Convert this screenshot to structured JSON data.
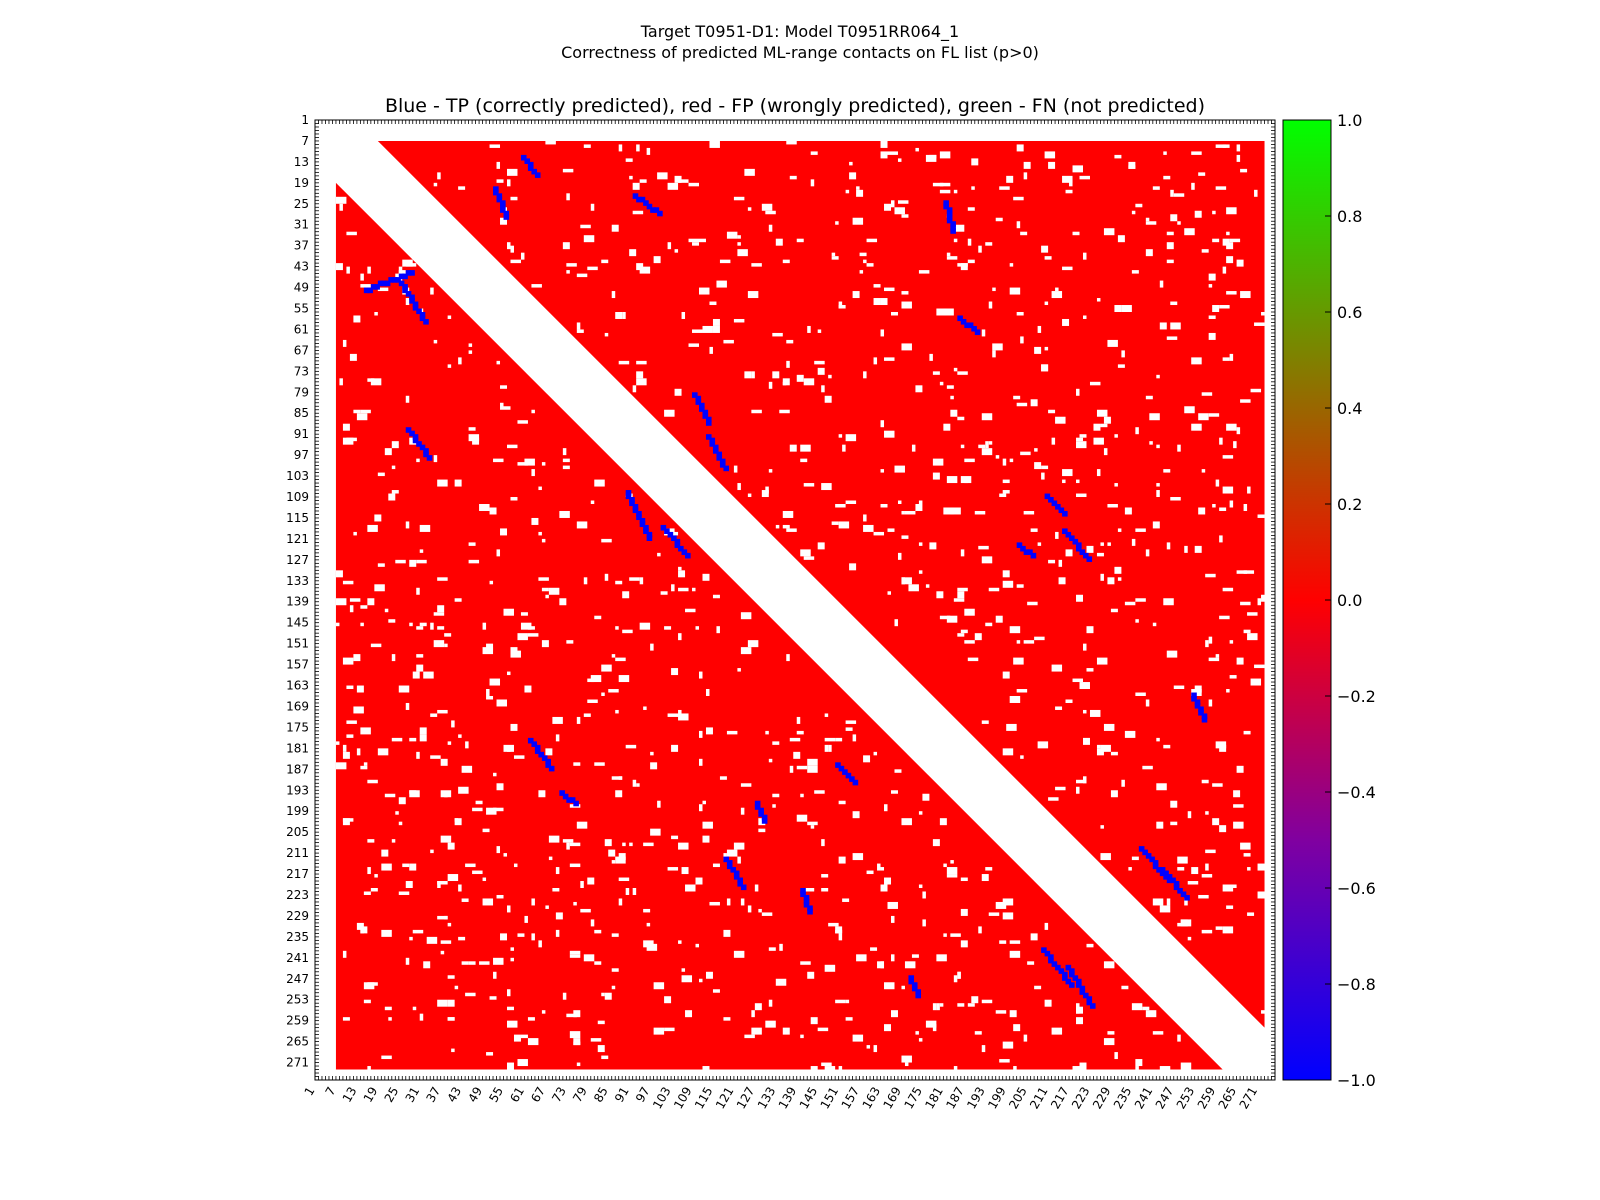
{
  "figure": {
    "suptitle_line1": "Target T0951-D1: Model T0951RR064_1",
    "suptitle_line2": "Correctness of predicted ML-range contacts on FL list (p>0)"
  },
  "chart_data": {
    "type": "heatmap",
    "title": "Blue - TP (correctly predicted), red - FP (wrongly predicted), green - FN (not predicted)",
    "xlabel": "",
    "ylabel": "",
    "residue_range": [
      1,
      275
    ],
    "x_tick_labels": [
      "1",
      "7",
      "13",
      "19",
      "25",
      "31",
      "37",
      "43",
      "49",
      "55",
      "61",
      "67",
      "73",
      "79",
      "85",
      "91",
      "97",
      "103",
      "109",
      "115",
      "121",
      "127",
      "133",
      "139",
      "145",
      "151",
      "157",
      "163",
      "169",
      "175",
      "181",
      "187",
      "193",
      "199",
      "205",
      "211",
      "217",
      "223",
      "229",
      "235",
      "241",
      "247",
      "253",
      "259",
      "265",
      "271"
    ],
    "y_tick_labels": [
      "1",
      "7",
      "13",
      "19",
      "25",
      "31",
      "37",
      "43",
      "49",
      "55",
      "61",
      "67",
      "73",
      "79",
      "85",
      "91",
      "97",
      "103",
      "109",
      "115",
      "121",
      "127",
      "133",
      "139",
      "145",
      "151",
      "157",
      "163",
      "169",
      "175",
      "181",
      "187",
      "193",
      "199",
      "205",
      "211",
      "217",
      "223",
      "229",
      "235",
      "241",
      "247",
      "253",
      "259",
      "265",
      "271"
    ],
    "min_sequence_separation_excluded": 12,
    "colorbar": {
      "range": [
        -1.0,
        1.0
      ],
      "ticks": [
        "1.0",
        "0.8",
        "0.6",
        "0.4",
        "0.2",
        "0.0",
        "−0.2",
        "−0.4",
        "−0.6",
        "−0.8",
        "−1.0"
      ],
      "colors": [
        "#0000ff",
        "#ff0000",
        "#00ff00"
      ]
    },
    "legend": {
      "tp": {
        "label": "TP (correctly predicted)",
        "value": -1.0,
        "color": "#0000ff"
      },
      "fp": {
        "label": "FP (wrongly predicted)",
        "value": 0.0,
        "color": "#ff0000"
      },
      "fn": {
        "label": "FN (not predicted)",
        "value": 1.0,
        "color": "#00ff00"
      }
    },
    "tp_diagonal_segments": [
      [
        [
          15,
          49
        ],
        [
          28,
          44
        ]
      ],
      [
        [
          25,
          47
        ],
        [
          32,
          58
        ]
      ],
      [
        [
          27,
          89
        ],
        [
          33,
          97
        ]
      ],
      [
        [
          90,
          107
        ],
        [
          96,
          120
        ]
      ],
      [
        [
          109,
          79
        ],
        [
          113,
          87
        ]
      ],
      [
        [
          113,
          91
        ],
        [
          118,
          100
        ]
      ],
      [
        [
          100,
          117
        ],
        [
          107,
          125
        ]
      ],
      [
        [
          52,
          20
        ],
        [
          55,
          28
        ]
      ],
      [
        [
          60,
          11
        ],
        [
          64,
          16
        ]
      ],
      [
        [
          62,
          178
        ],
        [
          68,
          186
        ]
      ],
      [
        [
          71,
          193
        ],
        [
          75,
          196
        ]
      ],
      [
        [
          92,
          22
        ],
        [
          99,
          27
        ]
      ],
      [
        [
          118,
          212
        ],
        [
          123,
          220
        ]
      ],
      [
        [
          127,
          196
        ],
        [
          129,
          201
        ]
      ],
      [
        [
          140,
          221
        ],
        [
          142,
          227
        ]
      ],
      [
        [
          150,
          185
        ],
        [
          155,
          190
        ]
      ],
      [
        [
          181,
          24
        ],
        [
          183,
          32
        ]
      ],
      [
        [
          185,
          57
        ],
        [
          190,
          61
        ]
      ],
      [
        [
          202,
          122
        ],
        [
          206,
          125
        ]
      ],
      [
        [
          210,
          108
        ],
        [
          215,
          113
        ]
      ],
      [
        [
          215,
          118
        ],
        [
          222,
          126
        ]
      ],
      [
        [
          209,
          238
        ],
        [
          217,
          248
        ]
      ],
      [
        [
          216,
          243
        ],
        [
          223,
          254
        ]
      ],
      [
        [
          237,
          209
        ],
        [
          245,
          218
        ]
      ],
      [
        [
          243,
          215
        ],
        [
          250,
          223
        ]
      ],
      [
        [
          252,
          165
        ],
        [
          255,
          172
        ]
      ],
      [
        [
          171,
          246
        ],
        [
          173,
          251
        ]
      ]
    ]
  }
}
